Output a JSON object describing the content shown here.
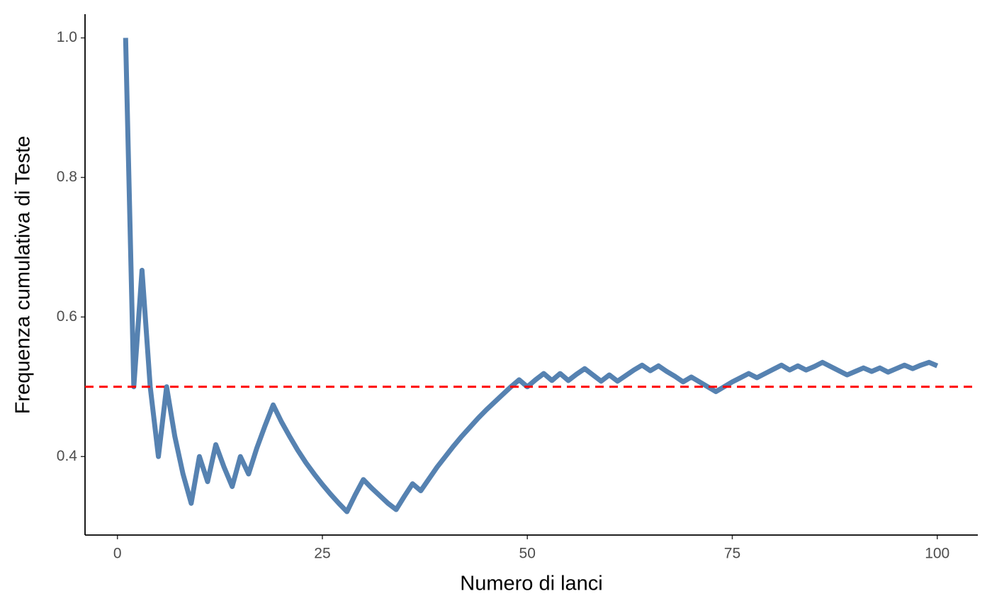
{
  "chart_data": {
    "type": "line",
    "x_label": "Numero di lanci",
    "y_label": "Frequenza cumulativa di Teste",
    "x": [
      1,
      2,
      3,
      4,
      5,
      6,
      7,
      8,
      9,
      10,
      11,
      12,
      13,
      14,
      15,
      16,
      17,
      18,
      19,
      20,
      21,
      22,
      23,
      24,
      25,
      26,
      27,
      28,
      29,
      30,
      31,
      32,
      33,
      34,
      35,
      36,
      37,
      38,
      39,
      40,
      41,
      42,
      43,
      44,
      45,
      46,
      47,
      48,
      49,
      50,
      51,
      52,
      53,
      54,
      55,
      56,
      57,
      58,
      59,
      60,
      61,
      62,
      63,
      64,
      65,
      66,
      67,
      68,
      69,
      70,
      71,
      72,
      73,
      74,
      75,
      76,
      77,
      78,
      79,
      80,
      81,
      82,
      83,
      84,
      85,
      86,
      87,
      88,
      89,
      90,
      91,
      92,
      93,
      94,
      95,
      96,
      97,
      98,
      99,
      100
    ],
    "values": [
      1,
      0.5,
      0.667,
      0.5,
      0.4,
      0.5,
      0.429,
      0.375,
      0.333,
      0.4,
      0.364,
      0.417,
      0.385,
      0.357,
      0.4,
      0.375,
      0.412,
      0.444,
      0.474,
      0.45,
      0.429,
      0.409,
      0.391,
      0.375,
      0.36,
      0.346,
      0.333,
      0.321,
      0.345,
      0.367,
      0.355,
      0.344,
      0.333,
      0.324,
      0.343,
      0.361,
      0.351,
      0.368,
      0.385,
      0.4,
      0.415,
      0.429,
      0.442,
      0.455,
      0.467,
      0.478,
      0.489,
      0.5,
      0.51,
      0.5,
      0.51,
      0.519,
      0.509,
      0.519,
      0.509,
      0.518,
      0.526,
      0.517,
      0.508,
      0.517,
      0.508,
      0.516,
      0.524,
      0.531,
      0.523,
      0.53,
      0.522,
      0.515,
      0.507,
      0.514,
      0.507,
      0.5,
      0.493,
      0.5,
      0.507,
      0.513,
      0.519,
      0.513,
      0.519,
      0.525,
      0.531,
      0.524,
      0.53,
      0.524,
      0.529,
      0.535,
      0.529,
      0.523,
      0.517,
      0.522,
      0.527,
      0.522,
      0.527,
      0.521,
      0.526,
      0.531,
      0.526,
      0.531,
      0.535,
      0.53
    ],
    "color": "#5682b1",
    "hline": 0.5,
    "hline_color": "#ff0000",
    "xlim": [
      -3.95,
      104.95
    ],
    "ylim": [
      0.2875,
      1.034
    ],
    "xticks": [
      0,
      25,
      50,
      75,
      100
    ],
    "yticks": [
      0.4,
      0.6,
      0.8,
      {
        "value": 1,
        "label": "1.0"
      }
    ]
  }
}
